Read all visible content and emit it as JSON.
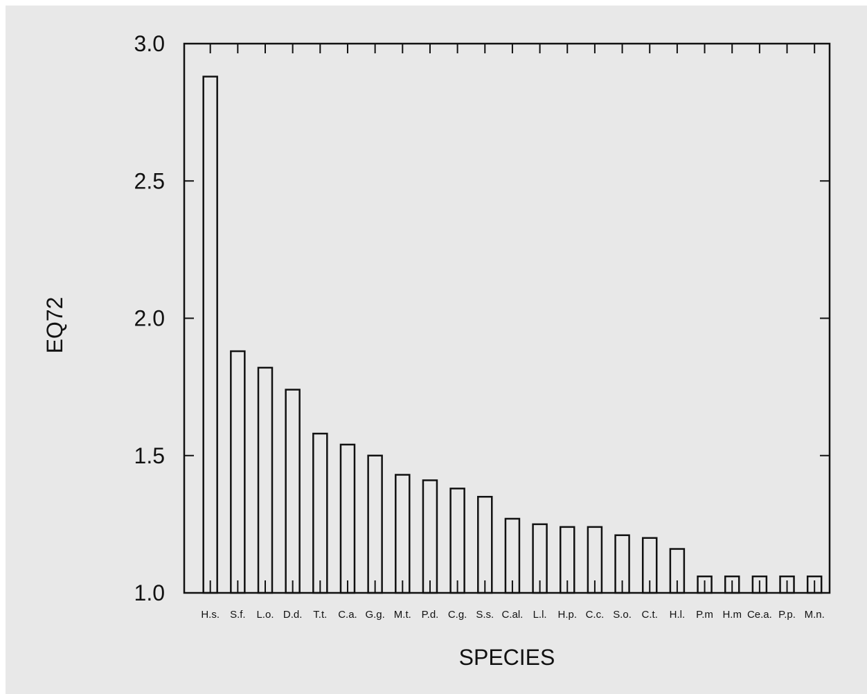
{
  "chart_data": {
    "type": "bar",
    "title": "",
    "xlabel": "SPECIES",
    "ylabel": "EQ72",
    "ylim": [
      1.0,
      3.0
    ],
    "yticks": [
      "1.0",
      "1.5",
      "2.0",
      "2.5",
      "3.0"
    ],
    "ytick_values": [
      1.0,
      1.5,
      2.0,
      2.5,
      3.0
    ],
    "grid": false,
    "categories": [
      "H.s.",
      "S.f.",
      "L.o.",
      "D.d.",
      "T.t.",
      "C.a.",
      "G.g.",
      "M.t.",
      "P.d.",
      "C.g.",
      "S.s.",
      "C.al.",
      "L.l.",
      "H.p.",
      "C.c.",
      "S.o.",
      "C.t.",
      "H.l.",
      "P.m",
      "H.m",
      "Ce.a.",
      "P.p.",
      "M.n."
    ],
    "values": [
      2.88,
      1.88,
      1.82,
      1.74,
      1.58,
      1.54,
      1.5,
      1.43,
      1.41,
      1.38,
      1.35,
      1.27,
      1.25,
      1.24,
      1.24,
      1.21,
      1.2,
      1.16,
      1.06,
      1.06,
      1.06,
      1.06,
      1.06
    ],
    "colors": {
      "bar_fill": "#e8e8e8",
      "bar_stroke": "#111111",
      "axis": "#111111",
      "background": "#e8e8e8"
    }
  }
}
